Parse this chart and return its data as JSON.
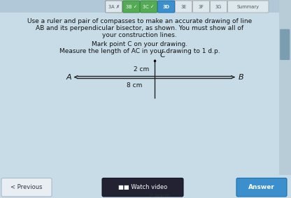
{
  "bg_color": "#c8dce8",
  "tabs": [
    "3A",
    "3B",
    "3C",
    "3D",
    "3E",
    "3F",
    "3G",
    "Summary"
  ],
  "active_tab": "3D",
  "checked_tabs": [
    "3B",
    "3C"
  ],
  "crossed_tab": "3A",
  "title_lines": [
    "Use a ruler and pair of compasses to make an accurate drawing of line",
    "AB and its perpendicular bisector, as shown. You must show all of",
    "your construction lines."
  ],
  "sub_lines": [
    "Mark point C on your drawing.",
    "Measure the length of AC in your drawing to 1 d.p."
  ],
  "line_color": "#222222",
  "label_A": "A",
  "label_B": "B",
  "label_C": "C",
  "label_8cm": "8 cm",
  "label_2cm": "2 cm",
  "bottom_bar_color": "#b8cdd8",
  "btn_prev_text": "< Previous",
  "btn_watch_text": "■■ Watch video",
  "btn_answer_text": "Answer",
  "tab_bg": "#c0d4e0",
  "tab_active_color": "#3a8fcc",
  "tab_green_color": "#55aa55",
  "tab_default_color": "#dde8ee",
  "scrollbar_color": "#9ab4c4",
  "fig_bg": "#c8dce8"
}
